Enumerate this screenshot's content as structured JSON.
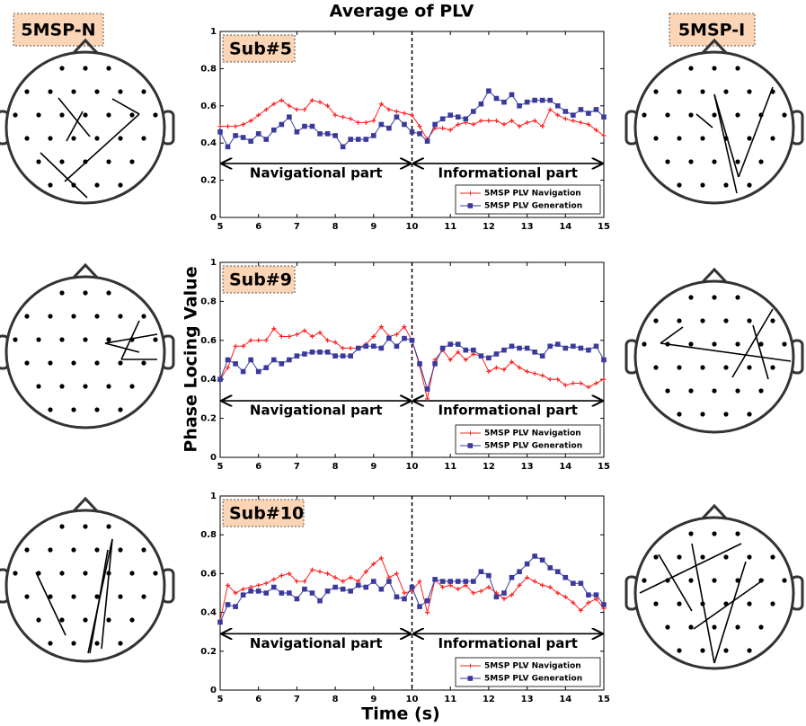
{
  "title": "Average of PLV",
  "y_label": "Phase Locing Value",
  "x_label": "Time (s)",
  "left_label": "5MSP-N",
  "right_label": "5MSP-I",
  "chart_data": [
    {
      "type": "line",
      "label": "Sub#5",
      "annotations": [
        "Navigational part",
        "Informational part"
      ],
      "divider": 10,
      "x": [
        5,
        5.2,
        5.4,
        5.6,
        5.8,
        6,
        6.2,
        6.4,
        6.6,
        6.8,
        7,
        7.2,
        7.4,
        7.6,
        7.8,
        8,
        8.2,
        8.4,
        8.6,
        8.8,
        9,
        9.2,
        9.4,
        9.6,
        9.8,
        10,
        10.2,
        10.4,
        10.6,
        10.8,
        11,
        11.2,
        11.4,
        11.6,
        11.8,
        12,
        12.2,
        12.4,
        12.6,
        12.8,
        13,
        13.2,
        13.4,
        13.6,
        13.8,
        14,
        14.2,
        14.4,
        14.6,
        14.8,
        15
      ],
      "xlim": [
        5,
        15
      ],
      "xticks": [
        5,
        6,
        7,
        8,
        9,
        10,
        11,
        12,
        13,
        14,
        15
      ],
      "ylim": [
        0,
        1
      ],
      "yticks": [
        0,
        0.2,
        0.4,
        0.6,
        0.8,
        1
      ],
      "series": [
        {
          "name": "5MSP PLV Navigation",
          "color": "#ff2020",
          "marker": "plus",
          "values": [
            0.49,
            0.49,
            0.49,
            0.5,
            0.52,
            0.55,
            0.58,
            0.61,
            0.63,
            0.6,
            0.58,
            0.58,
            0.63,
            0.62,
            0.6,
            0.55,
            0.54,
            0.53,
            0.51,
            0.51,
            0.52,
            0.61,
            0.58,
            0.57,
            0.56,
            0.55,
            0.49,
            0.42,
            0.48,
            0.48,
            0.47,
            0.5,
            0.51,
            0.5,
            0.52,
            0.52,
            0.52,
            0.5,
            0.52,
            0.49,
            0.51,
            0.52,
            0.49,
            0.58,
            0.55,
            0.53,
            0.52,
            0.51,
            0.5,
            0.47,
            0.44
          ]
        },
        {
          "name": "5MSP PLV Generation",
          "color": "#3a3a9e",
          "marker": "square",
          "values": [
            0.46,
            0.38,
            0.44,
            0.43,
            0.41,
            0.45,
            0.42,
            0.47,
            0.5,
            0.54,
            0.46,
            0.49,
            0.49,
            0.45,
            0.45,
            0.44,
            0.38,
            0.42,
            0.42,
            0.42,
            0.44,
            0.5,
            0.48,
            0.54,
            0.5,
            0.46,
            0.45,
            0.41,
            0.5,
            0.53,
            0.55,
            0.54,
            0.53,
            0.57,
            0.61,
            0.68,
            0.64,
            0.62,
            0.66,
            0.6,
            0.62,
            0.63,
            0.63,
            0.63,
            0.6,
            0.57,
            0.55,
            0.58,
            0.56,
            0.58,
            0.54
          ]
        }
      ]
    },
    {
      "type": "line",
      "label": "Sub#9",
      "annotations": [
        "Navigational part",
        "Informational part"
      ],
      "divider": 10,
      "x": [
        5,
        5.2,
        5.4,
        5.6,
        5.8,
        6,
        6.2,
        6.4,
        6.6,
        6.8,
        7,
        7.2,
        7.4,
        7.6,
        7.8,
        8,
        8.2,
        8.4,
        8.6,
        8.8,
        9,
        9.2,
        9.4,
        9.6,
        9.8,
        10,
        10.2,
        10.4,
        10.6,
        10.8,
        11,
        11.2,
        11.4,
        11.6,
        11.8,
        12,
        12.2,
        12.4,
        12.6,
        12.8,
        13,
        13.2,
        13.4,
        13.6,
        13.8,
        14,
        14.2,
        14.4,
        14.6,
        14.8,
        15
      ],
      "xlim": [
        5,
        15
      ],
      "xticks": [
        5,
        6,
        7,
        8,
        9,
        10,
        11,
        12,
        13,
        14,
        15
      ],
      "ylim": [
        0,
        1
      ],
      "yticks": [
        0,
        0.2,
        0.4,
        0.6,
        0.8,
        1
      ],
      "series": [
        {
          "name": "5MSP PLV Navigation",
          "color": "#ff2020",
          "marker": "plus",
          "values": [
            0.4,
            0.46,
            0.57,
            0.57,
            0.6,
            0.6,
            0.6,
            0.66,
            0.62,
            0.62,
            0.63,
            0.65,
            0.62,
            0.64,
            0.6,
            0.59,
            0.56,
            0.56,
            0.56,
            0.58,
            0.62,
            0.67,
            0.62,
            0.63,
            0.67,
            0.6,
            0.47,
            0.3,
            0.5,
            0.55,
            0.5,
            0.54,
            0.5,
            0.53,
            0.52,
            0.44,
            0.46,
            0.45,
            0.49,
            0.46,
            0.44,
            0.43,
            0.42,
            0.4,
            0.4,
            0.37,
            0.38,
            0.38,
            0.36,
            0.38,
            0.4
          ]
        },
        {
          "name": "5MSP PLV Generation",
          "color": "#3a3a9e",
          "marker": "square",
          "values": [
            0.4,
            0.5,
            0.48,
            0.44,
            0.5,
            0.44,
            0.46,
            0.5,
            0.48,
            0.5,
            0.52,
            0.53,
            0.54,
            0.54,
            0.54,
            0.52,
            0.52,
            0.52,
            0.56,
            0.57,
            0.57,
            0.56,
            0.61,
            0.57,
            0.61,
            0.6,
            0.48,
            0.35,
            0.48,
            0.56,
            0.58,
            0.58,
            0.55,
            0.55,
            0.52,
            0.51,
            0.53,
            0.55,
            0.57,
            0.56,
            0.56,
            0.54,
            0.52,
            0.57,
            0.58,
            0.56,
            0.57,
            0.56,
            0.55,
            0.57,
            0.5
          ]
        }
      ]
    },
    {
      "type": "line",
      "label": "Sub#10",
      "annotations": [
        "Navigational part",
        "Informational part"
      ],
      "divider": 10,
      "x": [
        5,
        5.2,
        5.4,
        5.6,
        5.8,
        6,
        6.2,
        6.4,
        6.6,
        6.8,
        7,
        7.2,
        7.4,
        7.6,
        7.8,
        8,
        8.2,
        8.4,
        8.6,
        8.8,
        9,
        9.2,
        9.4,
        9.6,
        9.8,
        10,
        10.2,
        10.4,
        10.6,
        10.8,
        11,
        11.2,
        11.4,
        11.6,
        11.8,
        12,
        12.2,
        12.4,
        12.6,
        12.8,
        13,
        13.2,
        13.4,
        13.6,
        13.8,
        14,
        14.2,
        14.4,
        14.6,
        14.8,
        15
      ],
      "xlim": [
        5,
        15
      ],
      "xticks": [
        5,
        6,
        7,
        8,
        9,
        10,
        11,
        12,
        13,
        14,
        15
      ],
      "ylim": [
        0,
        1
      ],
      "yticks": [
        0,
        0.2,
        0.4,
        0.6,
        0.8,
        1
      ],
      "series": [
        {
          "name": "5MSP PLV Navigation",
          "color": "#ff2020",
          "marker": "plus",
          "values": [
            0.36,
            0.54,
            0.5,
            0.52,
            0.53,
            0.54,
            0.55,
            0.57,
            0.59,
            0.6,
            0.56,
            0.56,
            0.62,
            0.61,
            0.6,
            0.58,
            0.56,
            0.58,
            0.56,
            0.61,
            0.65,
            0.68,
            0.58,
            0.6,
            0.5,
            0.51,
            0.56,
            0.4,
            0.57,
            0.53,
            0.54,
            0.52,
            0.54,
            0.5,
            0.51,
            0.53,
            0.5,
            0.47,
            0.49,
            0.54,
            0.58,
            0.56,
            0.54,
            0.53,
            0.5,
            0.48,
            0.45,
            0.41,
            0.45,
            0.47,
            0.42
          ]
        },
        {
          "name": "5MSP PLV Generation",
          "color": "#3a3a9e",
          "marker": "square",
          "values": [
            0.35,
            0.44,
            0.43,
            0.49,
            0.51,
            0.51,
            0.5,
            0.53,
            0.5,
            0.5,
            0.47,
            0.52,
            0.5,
            0.46,
            0.51,
            0.53,
            0.52,
            0.51,
            0.54,
            0.53,
            0.56,
            0.52,
            0.56,
            0.48,
            0.47,
            0.53,
            0.43,
            0.46,
            0.57,
            0.56,
            0.56,
            0.56,
            0.56,
            0.56,
            0.61,
            0.59,
            0.48,
            0.5,
            0.58,
            0.61,
            0.65,
            0.69,
            0.67,
            0.63,
            0.61,
            0.58,
            0.55,
            0.55,
            0.49,
            0.49,
            0.44
          ]
        }
      ]
    }
  ]
}
